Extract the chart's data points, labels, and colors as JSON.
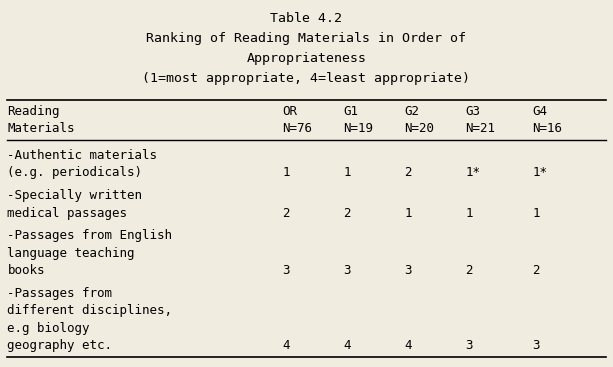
{
  "title_line1": "Table 4.2",
  "title_line2": "Ranking of Reading Materials in Order of",
  "title_line3": "Appropriateness",
  "title_line4": "(1=most appropriate, 4=least appropriate)",
  "col_headers": [
    [
      "Reading",
      "Materials"
    ],
    [
      "OR",
      "N=76"
    ],
    [
      "G1",
      "N=19"
    ],
    [
      "G2",
      "N=20"
    ],
    [
      "G3",
      "N=21"
    ],
    [
      "G4",
      "N=16"
    ]
  ],
  "rows": [
    {
      "label_lines": [
        "-Authentic materials",
        "(e.g. periodicals)"
      ],
      "values": [
        "1",
        "1",
        "2",
        "1*",
        "1*"
      ]
    },
    {
      "label_lines": [
        "-Specially written",
        "medical passages"
      ],
      "values": [
        "2",
        "2",
        "1",
        "1",
        "1"
      ]
    },
    {
      "label_lines": [
        "-Passages from English",
        "language teaching",
        "books"
      ],
      "values": [
        "3",
        "3",
        "3",
        "2",
        "2"
      ]
    },
    {
      "label_lines": [
        "-Passages from",
        "different disciplines,",
        "e.g biology",
        "geography etc."
      ],
      "values": [
        "4",
        "4",
        "4",
        "3",
        "3"
      ]
    }
  ],
  "bg_color": "#f0ece0",
  "font_family": "monospace",
  "title_fontsize": 9.5,
  "header_fontsize": 9,
  "body_fontsize": 9
}
